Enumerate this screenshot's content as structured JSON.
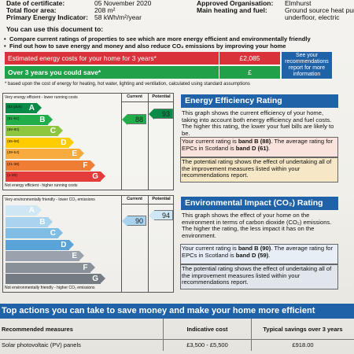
{
  "header": {
    "date_label": "Date of certificate:",
    "date_value": "05 November 2020",
    "floor_label": "Total floor area:",
    "floor_value": "208 m²",
    "pei_label": "Primary Energy Indicator:",
    "pei_value": "58 kWh/m²/year",
    "org_label": "Approved Organisation:",
    "org_value": "Elmhurst",
    "heat_label": "Main heating and fuel:",
    "heat_value_1": "Ground source heat pump,",
    "heat_value_2": "underfloor, electric"
  },
  "use_doc": {
    "title": "You can use this document to:",
    "bullet_1": "Compare current ratings of properties to see which are more energy efficient and environmentally friendly",
    "bullet_2": "Find out how to save energy and money and also reduce CO₂ emissions by improving your home"
  },
  "costs": {
    "estimated_label": "Estimated energy costs for your home for 3 years*",
    "estimated_value": "£2,085",
    "save_label": "Over 3 years you could save*",
    "save_value": "£",
    "see_box": [
      "See your",
      "recommendations",
      "report for more",
      "information"
    ],
    "footnote": "* based upon the cost of energy for heating, hot water, lighting and ventilation, calculated using standard assumptions",
    "colors": {
      "estimated": "#d9323a",
      "save": "#20a049",
      "info": "#1f62a8"
    }
  },
  "efficiency_chart": {
    "top_caption": "Very energy efficient - lower running costs",
    "bottom_caption": "Not energy efficient - higher running costs",
    "col_current": "Current",
    "col_potential": "Potential",
    "current_value": "88",
    "potential_value": "93",
    "bands": [
      {
        "range": "(92 plus)",
        "letter": "A",
        "color": "#0a8a47"
      },
      {
        "range": "(81-91)",
        "letter": "B",
        "color": "#21ad4a"
      },
      {
        "range": "(69-80)",
        "letter": "C",
        "color": "#8dc63f"
      },
      {
        "range": "(55-68)",
        "letter": "D",
        "color": "#ffcc00"
      },
      {
        "range": "(39-54)",
        "letter": "E",
        "color": "#f7ac3d"
      },
      {
        "range": "(21-38)",
        "letter": "F",
        "color": "#ef7d33"
      },
      {
        "range": "(1-20)",
        "letter": "G",
        "color": "#e43c3a"
      }
    ]
  },
  "environment_chart": {
    "top_caption": "Very environmentally friendly - lower CO₂ emissions",
    "bottom_caption": "Not environmentally friendly - higher CO₂ emissions",
    "col_current": "Current",
    "col_potential": "Potential",
    "current_value": "90",
    "potential_value": "94",
    "bands": [
      {
        "letter": "A",
        "color": "#cfe6f4"
      },
      {
        "letter": "B",
        "color": "#a9d3ee"
      },
      {
        "letter": "C",
        "color": "#7fbde5"
      },
      {
        "letter": "D",
        "color": "#5aa3d8"
      },
      {
        "letter": "E",
        "color": "#9aa3ad"
      },
      {
        "letter": "F",
        "color": "#8a9097"
      },
      {
        "letter": "G",
        "color": "#757b82"
      }
    ]
  },
  "eer": {
    "title": "Energy Efficiency Rating",
    "p1": "This graph shows the current efficiency of your home, taking into account both energy efficiency and fuel costs. The higher this rating, the lower your fuel bills are likely to be.",
    "p2_a": "Your current rating is ",
    "p2_b": "band B (88)",
    "p2_c": ". The average rating for EPCs in Scotland is ",
    "p2_d": "band D (61)",
    "p2_e": ".",
    "p3": "The potential rating shows the effect of undertaking all of the improvement measures listed within your recommendations report."
  },
  "eir": {
    "title": "Environmental Impact (CO₂) Rating",
    "p1": "This graph shows the effect of your home on the environment in terms of carbon dioxide (CO₂) emissions. The higher the rating, the less impact it has on the environment.",
    "p2_a": "Your current rating is ",
    "p2_b": "band B (90)",
    "p2_c": ". The average rating for EPCs in Scotland is ",
    "p2_d": "band D (59)",
    "p2_e": ".",
    "p3": "The potential rating shows the effect of undertaking all of the improvement measures listed within your recommendations report."
  },
  "actions": {
    "title": "Top actions you can take to save money and make your home more efficient",
    "col_measures": "Recommended measures",
    "col_cost": "Indicative cost",
    "col_savings": "Typical savings over 3 years",
    "rows": [
      {
        "measure": "Solar photovoltaic (PV) panels",
        "cost": "£3,500 - £5,500",
        "saving": "£918.00"
      }
    ]
  }
}
